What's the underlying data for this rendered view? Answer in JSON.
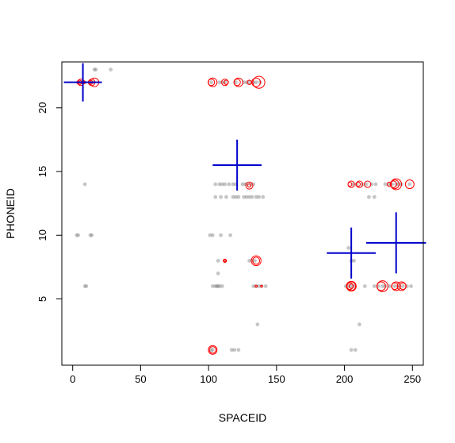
{
  "chart_data": {
    "type": "scatter",
    "title": "",
    "xlabel": "SPACEID",
    "ylabel": "PHONEID",
    "xlim": [
      -8,
      258
    ],
    "ylim": [
      -0.2,
      23.6
    ],
    "x_ticks": [
      0,
      50,
      100,
      150,
      200,
      250
    ],
    "y_ticks": [
      5,
      10,
      15,
      20
    ],
    "grid": false,
    "legend": "none",
    "colors": {
      "points": "#808080",
      "circles": "#ff0000",
      "crosses": "#0000cc"
    },
    "series": [
      {
        "kind": "points",
        "points": [
          [
            4,
            22
          ],
          [
            6,
            22
          ],
          [
            7,
            22
          ],
          [
            9,
            22
          ],
          [
            13,
            22
          ],
          [
            15,
            22
          ],
          [
            16,
            23
          ],
          [
            17,
            23
          ],
          [
            28,
            23
          ],
          [
            9,
            14
          ],
          [
            3,
            10
          ],
          [
            4,
            10
          ],
          [
            13,
            10
          ],
          [
            14,
            10
          ],
          [
            9,
            6
          ],
          [
            10,
            6
          ],
          [
            102,
            22
          ],
          [
            108,
            22
          ],
          [
            110,
            22
          ],
          [
            112,
            22
          ],
          [
            120,
            22
          ],
          [
            126,
            22
          ],
          [
            128,
            22
          ],
          [
            130,
            22
          ],
          [
            133,
            22
          ],
          [
            135,
            22
          ],
          [
            138,
            22
          ],
          [
            105,
            14
          ],
          [
            108,
            14
          ],
          [
            110,
            14
          ],
          [
            112,
            14
          ],
          [
            115,
            14
          ],
          [
            118,
            14
          ],
          [
            120,
            14
          ],
          [
            125,
            14
          ],
          [
            127,
            14
          ],
          [
            128,
            14
          ],
          [
            131,
            14
          ],
          [
            133,
            14
          ],
          [
            105,
            13
          ],
          [
            109,
            13
          ],
          [
            113,
            13
          ],
          [
            118,
            13
          ],
          [
            120,
            13
          ],
          [
            122,
            13
          ],
          [
            126,
            13
          ],
          [
            128,
            13
          ],
          [
            130,
            13
          ],
          [
            132,
            13
          ],
          [
            135,
            13
          ],
          [
            137,
            13
          ],
          [
            140,
            13
          ],
          [
            101,
            10
          ],
          [
            103,
            10
          ],
          [
            109,
            10
          ],
          [
            116,
            10
          ],
          [
            107,
            8
          ],
          [
            112,
            8
          ],
          [
            130,
            8
          ],
          [
            132,
            8
          ],
          [
            134,
            8
          ],
          [
            107,
            7
          ],
          [
            103,
            6
          ],
          [
            105,
            6
          ],
          [
            106,
            6
          ],
          [
            107,
            6
          ],
          [
            108,
            6
          ],
          [
            110,
            6
          ],
          [
            133,
            6
          ],
          [
            135,
            6
          ],
          [
            137,
            6
          ],
          [
            139,
            6
          ],
          [
            142,
            6
          ],
          [
            136,
            3
          ],
          [
            102,
            1
          ],
          [
            103,
            1
          ],
          [
            117,
            1
          ],
          [
            119,
            1
          ],
          [
            122,
            1
          ],
          [
            206,
            14
          ],
          [
            209,
            14
          ],
          [
            213,
            14
          ],
          [
            216,
            14
          ],
          [
            220,
            14
          ],
          [
            223,
            14
          ],
          [
            230,
            14
          ],
          [
            233,
            14
          ],
          [
            235,
            14
          ],
          [
            238,
            14
          ],
          [
            240,
            14
          ],
          [
            242,
            14
          ],
          [
            248,
            14
          ],
          [
            218,
            13
          ],
          [
            222,
            13
          ],
          [
            203,
            9
          ],
          [
            205,
            8
          ],
          [
            207,
            8
          ],
          [
            201,
            6
          ],
          [
            203,
            6
          ],
          [
            205,
            6
          ],
          [
            207,
            6
          ],
          [
            215,
            6
          ],
          [
            222,
            6
          ],
          [
            225,
            6
          ],
          [
            228,
            6
          ],
          [
            230,
            6
          ],
          [
            233,
            6
          ],
          [
            237,
            6
          ],
          [
            240,
            6
          ],
          [
            243,
            6
          ],
          [
            246,
            6
          ],
          [
            249,
            6
          ],
          [
            211,
            3
          ],
          [
            205,
            1
          ],
          [
            208,
            1
          ]
        ]
      },
      {
        "kind": "circles",
        "circles": [
          [
            4,
            22,
            1.0
          ],
          [
            5,
            22,
            1.6
          ],
          [
            6,
            22,
            2.4
          ],
          [
            8,
            22,
            1.2
          ],
          [
            13,
            22,
            1.6
          ],
          [
            14,
            22,
            2.4
          ],
          [
            16,
            22,
            3.2
          ],
          [
            102,
            22,
            2.4
          ],
          [
            103,
            22,
            3.2
          ],
          [
            113,
            22,
            1.6
          ],
          [
            112,
            22,
            2.4
          ],
          [
            121,
            22,
            2.4
          ],
          [
            122,
            22,
            3.2
          ],
          [
            130,
            22,
            1.6
          ],
          [
            135,
            22,
            3.2
          ],
          [
            137,
            22,
            4.4
          ],
          [
            130,
            13.9,
            1.2
          ],
          [
            130,
            13.9,
            2.6
          ],
          [
            112,
            8,
            0.8
          ],
          [
            112,
            8,
            1.2
          ],
          [
            135,
            8,
            2.6
          ],
          [
            135,
            8,
            3.6
          ],
          [
            135,
            6,
            0.8
          ],
          [
            139,
            6,
            0.7
          ],
          [
            103,
            1,
            2.4
          ],
          [
            103,
            1,
            3.2
          ],
          [
            204,
            14,
            1.4
          ],
          [
            205,
            14,
            2.4
          ],
          [
            210,
            14,
            1.6
          ],
          [
            211,
            14,
            2.4
          ],
          [
            217,
            14,
            2.4
          ],
          [
            233,
            14,
            1.6
          ],
          [
            236,
            14,
            2.4
          ],
          [
            237,
            14,
            3.2
          ],
          [
            238,
            14,
            4.0
          ],
          [
            248,
            14,
            3.2
          ],
          [
            205,
            6,
            1.6
          ],
          [
            204,
            6,
            2.4
          ],
          [
            205,
            6,
            3.2
          ],
          [
            205,
            6,
            3.6
          ],
          [
            227,
            6,
            3.2
          ],
          [
            228,
            6,
            4.0
          ],
          [
            237,
            6,
            2.4
          ],
          [
            238,
            6,
            3.2
          ],
          [
            243,
            6,
            2.4
          ],
          [
            242,
            6,
            3.2
          ]
        ]
      },
      {
        "kind": "crosses",
        "crosses": [
          [
            7.5,
            22,
            14,
            1.5
          ],
          [
            121,
            15.5,
            18,
            2.0
          ],
          [
            205,
            8.6,
            18,
            2.0
          ],
          [
            238,
            9.4,
            22,
            2.4
          ]
        ]
      }
    ]
  }
}
